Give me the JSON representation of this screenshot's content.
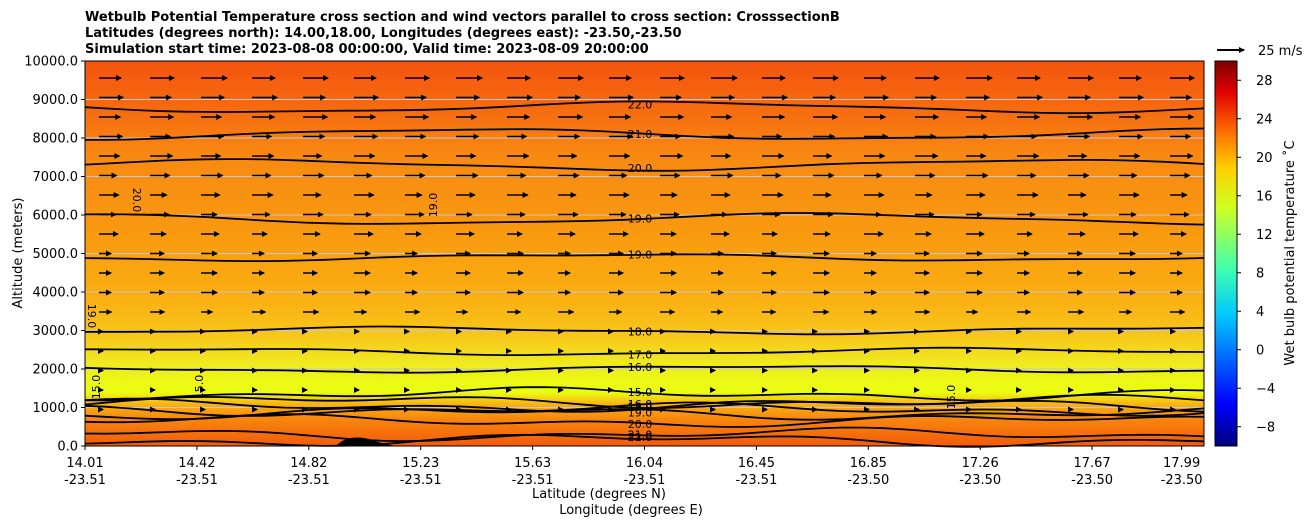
{
  "chart_data": {
    "type": "contour",
    "title_lines": [
      "Wetbulb Potential Temperature cross section and wind vectors parallel to cross section: CrosssectionB",
      "Latitudes (degrees north): 14.00,18.00, Longitudes (degrees east): -23.50,-23.50",
      "Simulation start time: 2023-08-08 00:00:00, Valid time: 2023-08-09 20:00:00"
    ],
    "ylabel": "Altitude (meters)",
    "xlabel_1": "Latitude (degrees N)",
    "xlabel_2": "Longitude (degrees E)",
    "ylim": [
      0,
      10000
    ],
    "y_ticks": [
      "0.0",
      "1000.0",
      "2000.0",
      "3000.0",
      "4000.0",
      "5000.0",
      "6000.0",
      "7000.0",
      "8000.0",
      "9000.0",
      "10000.0"
    ],
    "x_ticks": [
      {
        "lat": "14.01",
        "lon": "-23.51",
        "pos": 0.0
      },
      {
        "lat": "14.42",
        "lon": "-23.51",
        "pos": 0.1
      },
      {
        "lat": "14.82",
        "lon": "-23.51",
        "pos": 0.2
      },
      {
        "lat": "15.23",
        "lon": "-23.51",
        "pos": 0.3
      },
      {
        "lat": "15.63",
        "lon": "-23.51",
        "pos": 0.4
      },
      {
        "lat": "16.04",
        "lon": "-23.51",
        "pos": 0.5
      },
      {
        "lat": "16.45",
        "lon": "-23.51",
        "pos": 0.6
      },
      {
        "lat": "16.85",
        "lon": "-23.50",
        "pos": 0.7
      },
      {
        "lat": "17.26",
        "lon": "-23.50",
        "pos": 0.8
      },
      {
        "lat": "17.67",
        "lon": "-23.50",
        "pos": 0.9
      },
      {
        "lat": "17.99",
        "lon": "-23.50",
        "pos": 0.98
      }
    ],
    "colorbar": {
      "label": "Wet bulb potential temperature ˚C",
      "range": [
        -10,
        30
      ],
      "ticks": [
        "−8",
        "−4",
        "0",
        "4",
        "8",
        "12",
        "16",
        "20",
        "24",
        "28"
      ]
    },
    "quiver_key": {
      "label": "25 m/s"
    },
    "contours": [
      {
        "value": 22.0,
        "label": "22.0",
        "altitude": 8800
      },
      {
        "value": 21.0,
        "label": "21.0",
        "altitude": 8100
      },
      {
        "value": 20.0,
        "label": "20.0",
        "altitude": 7300
      },
      {
        "value": 19.0,
        "label": "19.0",
        "altitude": 5900
      },
      {
        "value": 19.0,
        "label": "19.0",
        "altitude": 4900
      },
      {
        "value": 18.0,
        "label": "18.0",
        "altitude": 3000
      },
      {
        "value": 17.0,
        "label": "17.0",
        "altitude": 2450
      },
      {
        "value": 16.0,
        "label": "16.0",
        "altitude": 2000
      },
      {
        "value": 15.0,
        "label": "15.0",
        "altitude": 1350
      },
      {
        "value": 16.0,
        "label": "16.0",
        "altitude": 1150
      },
      {
        "value": 17.0,
        "label": "17.0",
        "altitude": 1050
      },
      {
        "value": 18.0,
        "label": "18.0",
        "altitude": 950
      },
      {
        "value": 19.0,
        "label": "19.0",
        "altitude": 850
      },
      {
        "value": 20.0,
        "label": "20.0",
        "altitude": 650
      },
      {
        "value": 21.0,
        "label": "21.0",
        "altitude": 300
      },
      {
        "value": 22.0,
        "label": "22.0",
        "altitude": 150
      }
    ],
    "side_labels": [
      "20.0",
      "19.0",
      "19.0",
      "15.0",
      "15.0",
      "15.0"
    ]
  },
  "colors": {
    "cmap": [
      "#00007f",
      "#0000ff",
      "#007fff",
      "#00ffff",
      "#7fff7f",
      "#ffff00",
      "#ff7f00",
      "#ff0000",
      "#7f0000"
    ],
    "contour": "#000000",
    "grid": "#c8c8c8"
  }
}
